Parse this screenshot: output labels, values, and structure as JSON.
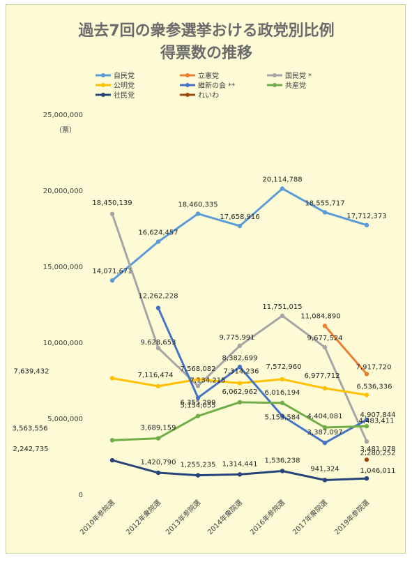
{
  "chart_data": {
    "type": "line",
    "title_lines": [
      "過去7回の衆参選挙おける政党別比例",
      "得票数の推移"
    ],
    "y_unit": "（票）",
    "ylim": [
      0,
      25000000
    ],
    "yticks": [
      0,
      5000000,
      10000000,
      15000000,
      20000000,
      25000000
    ],
    "ytick_labels": [
      "0",
      "5,000,000",
      "10,000,000",
      "15,000,000",
      "20,000,000",
      "25,000,000"
    ],
    "grid": false,
    "legend_position": "top",
    "categories": [
      "2010年参院選",
      "2012年衆院選",
      "2013年参院選",
      "2014年衆院選",
      "2016年参院選",
      "2017年衆院選",
      "2019年参院選"
    ],
    "series": [
      {
        "name": "自民党",
        "color": "#5b9bd5",
        "values": [
          14071671,
          16624457,
          18460335,
          17658916,
          20114788,
          18555717,
          17712373
        ],
        "labels": [
          "14,071,671",
          "16,624,457",
          "18,460,335",
          "17,658,916",
          "20,114,788",
          "18,555,717",
          "17,712,373"
        ]
      },
      {
        "name": "立憲党",
        "color": "#ed7d31",
        "values": [
          null,
          null,
          null,
          null,
          null,
          11084890,
          7917720
        ],
        "labels": [
          "",
          "",
          "",
          "",
          "",
          "11,084,890",
          "7,917,720"
        ]
      },
      {
        "name": "国民党 *",
        "color": "#a5a5a5",
        "values": [
          18450139,
          9628653,
          7134215,
          9775991,
          11751015,
          9677524,
          3481078
        ],
        "labels": [
          "18,450,139",
          "9,628,653",
          "7,134,215",
          "9,775,991",
          "11,751,015",
          "9,677,524",
          "3,481,078"
        ]
      },
      {
        "name": "公明党",
        "color": "#ffc000",
        "values": [
          7639432,
          7116474,
          7568082,
          7314236,
          7572960,
          6977712,
          6536336
        ],
        "labels": [
          "7,639,432",
          "7,116,474",
          "7,568,082",
          "7,314,236",
          "7,572,960",
          "6,977,712",
          "6,536,336"
        ]
      },
      {
        "name": "維新の会 **",
        "color": "#4472c4",
        "values": [
          null,
          12262228,
          6355299,
          8382699,
          5153584,
          3387097,
          4907844
        ],
        "labels": [
          "",
          "12,262,228",
          "6,355,299",
          "8,382,699",
          "5,153,584",
          "3,387,097",
          "4,907,844"
        ]
      },
      {
        "name": "共産党",
        "color": "#70ad47",
        "values": [
          3563556,
          3689159,
          5154055,
          6062962,
          6016194,
          4404081,
          4483411
        ],
        "labels": [
          "3,563,556",
          "3,689,159",
          "5,154,055",
          "6,062,962",
          "6,016,194",
          "4,404,081",
          "4,483,411"
        ]
      },
      {
        "name": "社民党",
        "color": "#264478",
        "values": [
          2242735,
          1420790,
          1255235,
          1314441,
          1536238,
          941324,
          1046011
        ],
        "labels": [
          "2,242,735",
          "1,420,790",
          "1,255,235",
          "1,314,441",
          "1,536,238",
          "941,324",
          "1,046,011"
        ]
      },
      {
        "name": "れいわ",
        "color": "#9e480e",
        "values": [
          null,
          null,
          null,
          null,
          null,
          null,
          2280252
        ],
        "labels": [
          "",
          "",
          "",
          "",
          "",
          "",
          "2,280,252"
        ]
      }
    ]
  }
}
